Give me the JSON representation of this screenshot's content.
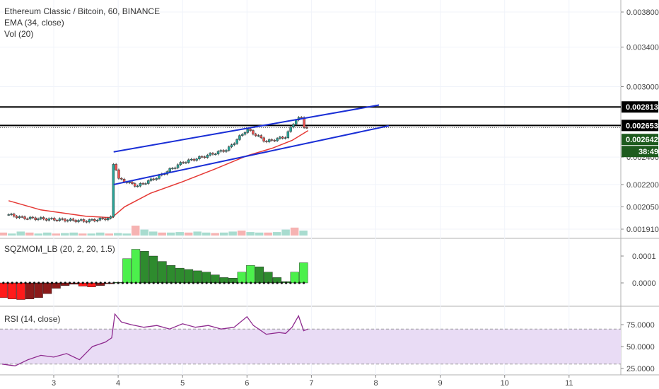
{
  "header": {
    "title": "Ethereum Classic / Bitcoin, 60, BINANCE",
    "indicators": [
      "EMA (34, close)",
      "Vol (20)"
    ]
  },
  "price_axis": {
    "ticks": [
      "0.003800",
      "0.003400",
      "0.003000",
      "0.002400",
      "0.002200",
      "0.002050",
      "0.001910"
    ],
    "tags": [
      {
        "label": "0.002813",
        "bg": "#000000"
      },
      {
        "label": "0.002653",
        "bg": "#000000"
      },
      {
        "label": "0.002642",
        "bg": "#1e5b1e"
      },
      {
        "label": "38:49",
        "bg": "#1e5b1e"
      }
    ]
  },
  "squeeze_panel": {
    "label": "SQZMOM_LB (20, 2, 20, 1.5)",
    "ticks": [
      "0.0001",
      "0.0000"
    ]
  },
  "rsi_panel": {
    "label": "RSI (14, close)",
    "ticks": [
      "75.0000",
      "50.0000",
      "25.0000"
    ]
  },
  "time_axis": {
    "ticks": [
      "3",
      "4",
      "5",
      "6",
      "7",
      "8",
      "9",
      "10",
      "11"
    ]
  },
  "colors": {
    "up": "#26a69a",
    "down": "#ef5350",
    "ema": "#e53935",
    "channel": "#1a2fd6",
    "rsi": "#8e2a8e",
    "rsi_band": "#e9dcf5",
    "sqz_up_strong": "#4cf04c",
    "sqz_up_weak": "#2e8b2e",
    "sqz_down_strong": "#ff1a1a",
    "sqz_down_weak": "#8b1a1a"
  },
  "chart_data": [
    {
      "type": "candlestick",
      "title": "Ethereum Classic / Bitcoin, 60, BINANCE",
      "x_axis": {
        "type": "time",
        "ticks": [
          "3",
          "4",
          "5",
          "6",
          "7",
          "8",
          "9",
          "10",
          "11"
        ]
      },
      "y_axis": {
        "scale": "log",
        "ticks": [
          0.0038,
          0.0034,
          0.003,
          0.0024,
          0.0022,
          0.00205,
          0.00191
        ]
      },
      "price_path": [
        [
          2.3,
          0.002
        ],
        [
          2.5,
          0.00198
        ],
        [
          3.0,
          0.00197
        ],
        [
          3.5,
          0.00196
        ],
        [
          3.9,
          0.00198
        ],
        [
          3.93,
          0.0024
        ],
        [
          4.0,
          0.00224
        ],
        [
          4.3,
          0.00219
        ],
        [
          4.6,
          0.00225
        ],
        [
          5.0,
          0.00236
        ],
        [
          5.3,
          0.0024
        ],
        [
          5.7,
          0.00246
        ],
        [
          6.0,
          0.00262
        ],
        [
          6.3,
          0.00252
        ],
        [
          6.6,
          0.00256
        ],
        [
          6.75,
          0.0027
        ],
        [
          6.85,
          0.00272
        ],
        [
          6.9,
          0.00262
        ],
        [
          6.95,
          0.002642
        ]
      ],
      "ema_path": [
        [
          2.3,
          0.00209
        ],
        [
          2.8,
          0.00203
        ],
        [
          3.5,
          0.00199
        ],
        [
          3.9,
          0.00198
        ],
        [
          4.1,
          0.00205
        ],
        [
          4.5,
          0.00214
        ],
        [
          5.0,
          0.00222
        ],
        [
          5.5,
          0.00231
        ],
        [
          6.0,
          0.00241
        ],
        [
          6.4,
          0.00247
        ],
        [
          6.7,
          0.00253
        ],
        [
          6.95,
          0.00261
        ]
      ],
      "horizontal_levels": [
        0.002813,
        0.002653
      ],
      "channel_upper": [
        [
          3.93,
          0.00244
        ],
        [
          8.05,
          0.00283
        ]
      ],
      "channel_lower": [
        [
          3.93,
          0.0022
        ],
        [
          8.2,
          0.00265
        ]
      ],
      "last_price": 0.002642,
      "countdown": "38:49"
    },
    {
      "type": "bar",
      "name": "SQZMOM_LB (20, 2, 20, 1.5)",
      "y_axis": {
        "ticks": [
          0.0001,
          0.0
        ]
      },
      "x_start": 2.15,
      "x_end": 6.95,
      "values": [
        -5.5e-05,
        -6e-05,
        -6.2e-05,
        -6e-05,
        -5.5e-05,
        -4e-05,
        -2e-05,
        -1e-05,
        -5e-06,
        -1.2e-05,
        -1.5e-05,
        -1e-05,
        -3e-06,
        2e-06,
        9e-05,
        0.000125,
        0.000118,
        0.0001,
        8e-05,
        6.5e-05,
        5.5e-05,
        5e-05,
        4.5e-05,
        4e-05,
        3e-05,
        2e-05,
        1.8e-05,
        4e-05,
        6.5e-05,
        6e-05,
        4e-05,
        2e-05,
        5e-06,
        4e-05,
        7.5e-05
      ]
    },
    {
      "type": "line",
      "name": "RSI (14, close)",
      "y_axis": {
        "ticks": [
          75,
          50,
          25
        ]
      },
      "band": [
        30,
        70
      ],
      "x": [
        2.2,
        2.4,
        2.6,
        2.8,
        3.0,
        3.2,
        3.4,
        3.6,
        3.8,
        3.9,
        3.95,
        4.05,
        4.2,
        4.4,
        4.6,
        4.8,
        5.0,
        5.2,
        5.4,
        5.6,
        5.8,
        6.0,
        6.1,
        6.3,
        6.5,
        6.6,
        6.7,
        6.8,
        6.88,
        6.95
      ],
      "y": [
        30,
        28,
        35,
        40,
        38,
        42,
        35,
        50,
        55,
        60,
        87,
        78,
        75,
        72,
        74,
        70,
        76,
        72,
        74,
        70,
        72,
        84,
        74,
        64,
        66,
        65,
        72,
        85,
        68,
        70
      ]
    },
    {
      "type": "bar",
      "name": "Vol (20)",
      "x_start": 2.15,
      "x_end": 6.95,
      "values": [
        0.3,
        0.2,
        0.4,
        0.3,
        0.2,
        0.3,
        0.2,
        0.25,
        0.3,
        0.2,
        0.2,
        0.3,
        0.2,
        0.25,
        0.2,
        1.0,
        0.6,
        0.4,
        0.3,
        0.3,
        0.35,
        0.3,
        0.4,
        0.3,
        0.25,
        0.3,
        0.4,
        0.5,
        0.35,
        0.3,
        0.3,
        0.35,
        0.6,
        0.8,
        0.5
      ]
    }
  ]
}
